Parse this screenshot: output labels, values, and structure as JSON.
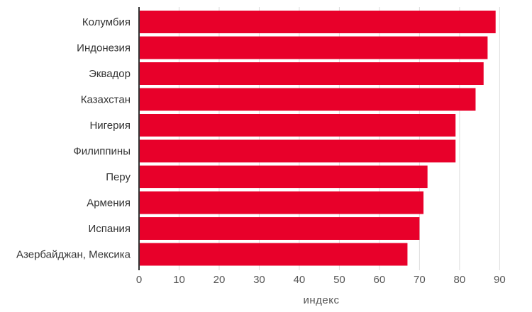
{
  "chart_data": {
    "type": "bar",
    "orientation": "horizontal",
    "categories": [
      "Колумбия",
      "Индонезия",
      "Эквадор",
      "Казахстан",
      "Нигерия",
      "Филиппины",
      "Перу",
      "Армения",
      "Испания",
      "Азербайджан, Мексика"
    ],
    "values": [
      89,
      87,
      86,
      84,
      79,
      79,
      72,
      71,
      70,
      67
    ],
    "xlabel": "индекс",
    "ylabel": "",
    "xlim": [
      0,
      91
    ],
    "xticks": [
      0,
      10,
      20,
      30,
      40,
      50,
      60,
      70,
      80,
      90
    ],
    "grid": "vertical gridlines",
    "bar_color": "#e8002a",
    "gridline_color": "#dcdcdc",
    "axis_color": "#333333"
  }
}
